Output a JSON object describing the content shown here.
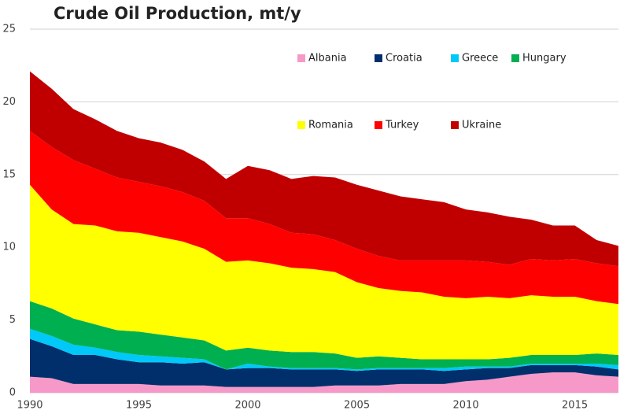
{
  "chart_data": {
    "type": "stacked_area",
    "title": "Crude Oil Production, mt/y",
    "x": [
      1990,
      1991,
      1992,
      1993,
      1994,
      1995,
      1996,
      1997,
      1998,
      1999,
      2000,
      2001,
      2002,
      2003,
      2004,
      2005,
      2006,
      2007,
      2008,
      2009,
      2010,
      2011,
      2012,
      2013,
      2014,
      2015,
      2016,
      2017
    ],
    "xlim": [
      1990,
      2017
    ],
    "xticks": [
      1990,
      1995,
      2000,
      2005,
      2010,
      2015
    ],
    "ylim": [
      0,
      25
    ],
    "yticks": [
      0,
      5,
      10,
      15,
      20,
      25
    ],
    "grid": true,
    "series": [
      {
        "name": "Albania",
        "color": "#f799c8",
        "values": [
          1.1,
          1.0,
          0.6,
          0.6,
          0.6,
          0.6,
          0.5,
          0.5,
          0.5,
          0.4,
          0.4,
          0.4,
          0.4,
          0.4,
          0.5,
          0.5,
          0.5,
          0.6,
          0.6,
          0.6,
          0.8,
          0.9,
          1.1,
          1.3,
          1.4,
          1.4,
          1.2,
          1.1
        ]
      },
      {
        "name": "Croatia",
        "color": "#002f6c",
        "values": [
          2.6,
          2.2,
          2.0,
          2.0,
          1.7,
          1.5,
          1.6,
          1.5,
          1.6,
          1.2,
          1.3,
          1.3,
          1.2,
          1.2,
          1.1,
          1.0,
          1.1,
          1.0,
          1.0,
          0.9,
          0.8,
          0.8,
          0.6,
          0.6,
          0.5,
          0.5,
          0.6,
          0.5
        ]
      },
      {
        "name": "Greece",
        "color": "#00c8f8",
        "values": [
          0.7,
          0.7,
          0.7,
          0.5,
          0.5,
          0.5,
          0.4,
          0.4,
          0.2,
          0.0,
          0.3,
          0.1,
          0.1,
          0.1,
          0.1,
          0.1,
          0.1,
          0.1,
          0.1,
          0.2,
          0.2,
          0.1,
          0.1,
          0.1,
          0.1,
          0.1,
          0.2,
          0.3
        ]
      },
      {
        "name": "Hungary",
        "color": "#00b050",
        "values": [
          1.9,
          1.9,
          1.8,
          1.6,
          1.5,
          1.6,
          1.5,
          1.4,
          1.3,
          1.3,
          1.1,
          1.1,
          1.1,
          1.1,
          1.0,
          0.8,
          0.8,
          0.7,
          0.6,
          0.6,
          0.5,
          0.5,
          0.6,
          0.6,
          0.6,
          0.6,
          0.7,
          0.7
        ]
      },
      {
        "name": "Romania",
        "color": "#ffff00",
        "values": [
          8.0,
          6.8,
          6.5,
          6.8,
          6.8,
          6.8,
          6.7,
          6.6,
          6.3,
          6.1,
          6.0,
          6.0,
          5.8,
          5.7,
          5.6,
          5.2,
          4.7,
          4.6,
          4.6,
          4.3,
          4.2,
          4.3,
          4.1,
          4.1,
          4.0,
          4.0,
          3.6,
          3.5
        ]
      },
      {
        "name": "Turkey",
        "color": "#ff0000",
        "values": [
          3.7,
          4.3,
          4.4,
          3.9,
          3.7,
          3.5,
          3.5,
          3.4,
          3.3,
          3.0,
          2.9,
          2.7,
          2.4,
          2.4,
          2.2,
          2.3,
          2.2,
          2.1,
          2.2,
          2.5,
          2.6,
          2.4,
          2.3,
          2.5,
          2.5,
          2.6,
          2.6,
          2.6
        ]
      },
      {
        "name": "Ukraine",
        "color": "#c00000",
        "values": [
          4.1,
          4.0,
          3.5,
          3.4,
          3.2,
          3.0,
          3.0,
          2.9,
          2.7,
          2.7,
          3.6,
          3.7,
          3.7,
          4.0,
          4.3,
          4.4,
          4.5,
          4.4,
          4.2,
          4.0,
          3.5,
          3.4,
          3.3,
          2.7,
          2.4,
          2.3,
          1.6,
          1.4
        ]
      }
    ]
  }
}
